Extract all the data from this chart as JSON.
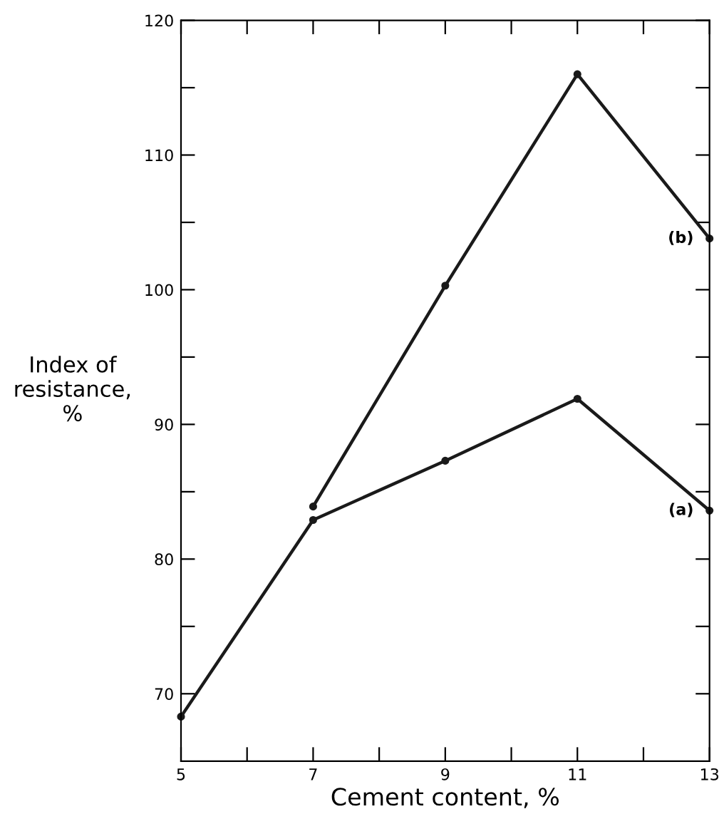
{
  "chart_data": {
    "type": "line",
    "xlabel": "Cement content, %",
    "ylabel": "Index of\nresistance,\n%",
    "xlim": [
      5,
      13
    ],
    "ylim": [
      65,
      120
    ],
    "xticks": [
      5,
      {
        "value": 6,
        "label": null
      },
      7,
      {
        "value": 8,
        "label": null
      },
      9,
      {
        "value": 10,
        "label": null
      },
      11,
      {
        "value": 12,
        "label": null
      },
      13
    ],
    "yticks": [
      70,
      {
        "value": 75,
        "label": null
      },
      80,
      {
        "value": 85,
        "label": null
      },
      90,
      {
        "value": 95,
        "label": null
      },
      100,
      {
        "value": 105,
        "label": null
      },
      110,
      {
        "value": 115,
        "label": null
      },
      120
    ],
    "marker": "circle",
    "line_style": "solid",
    "grid": false,
    "legend": false,
    "series": [
      {
        "color": "#1a1a1a",
        "x": [
          5,
          7,
          9,
          11,
          13
        ],
        "values": [
          68.3,
          82.9,
          87.3,
          91.9,
          83.6
        ]
      },
      {
        "color": "#1a1a1a",
        "x": [
          7,
          9,
          11,
          13
        ],
        "values": [
          83.9,
          100.3,
          116,
          103.8
        ]
      }
    ],
    "annotations": [
      {
        "text": "(a)",
        "x": 13,
        "y": 83.6
      },
      {
        "text": "(b)",
        "x": 13,
        "y": 103.8
      }
    ]
  }
}
